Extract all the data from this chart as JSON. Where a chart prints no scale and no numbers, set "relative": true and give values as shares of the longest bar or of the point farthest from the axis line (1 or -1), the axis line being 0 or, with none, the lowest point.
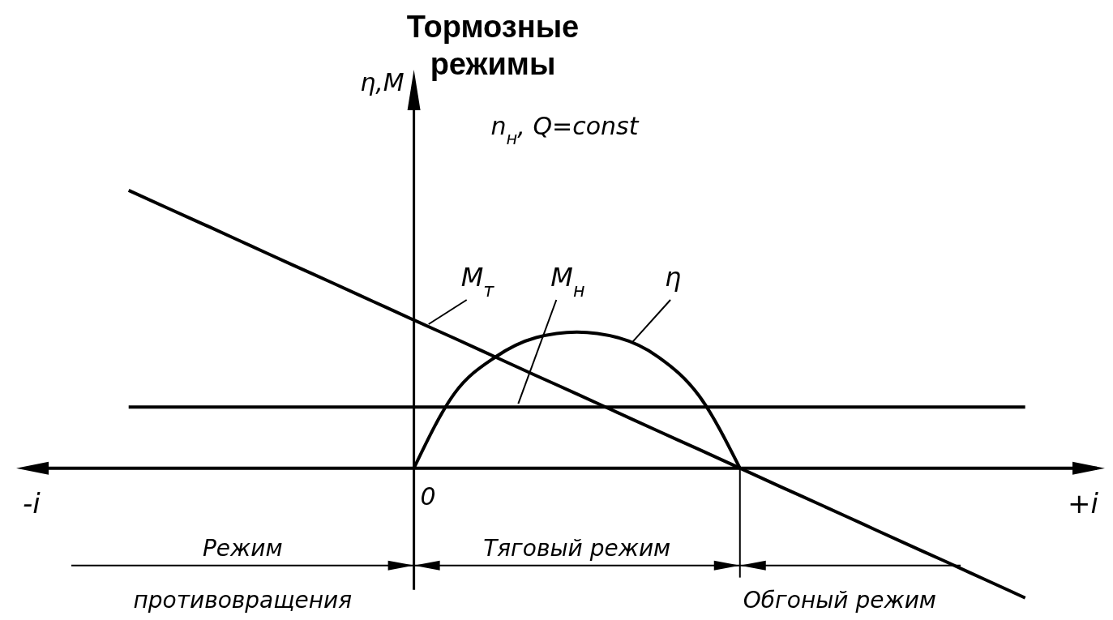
{
  "chart_data": {
    "type": "line",
    "title": "Тормозные режимы",
    "ylabel": "η,M",
    "relative": true,
    "categories": [
      null,
      null,
      null,
      null,
      null,
      null,
      null,
      null,
      null,
      null,
      null,
      null,
      null,
      null,
      null,
      null,
      null,
      null,
      null,
      null,
      null,
      null,
      null
    ],
    "series": [
      {
        "name": "M$_{т}$",
        "color": "#000000",
        "values": [
          1,
          0.933,
          0.867,
          0.8,
          0.733,
          0.667,
          0.6,
          0.533,
          0.467,
          0.4,
          0.333,
          0.267,
          0.2,
          0.133,
          0.067,
          0,
          -0.067,
          -0.133,
          -0.2,
          -0.267,
          -0.333,
          -0.4,
          -0.467
        ]
      },
      {
        "name": "M$_{н}$",
        "color": "#000000",
        "values": [
          0.22,
          0.22,
          0.22,
          0.22,
          0.22,
          0.22,
          0.22,
          0.22,
          0.22,
          0.22,
          0.22,
          0.22,
          0.22,
          0.22,
          0.22,
          0.22,
          0.22,
          0.22,
          0.22,
          0.22,
          0.22,
          0.22,
          0.22
        ]
      },
      {
        "name": "η",
        "color": "#000000",
        "values": [
          null,
          null,
          null,
          null,
          null,
          null,
          null,
          0,
          0.27,
          0.4,
          0.47,
          0.49,
          0.47,
          0.4,
          0.26,
          0,
          null,
          null,
          null,
          null,
          null,
          null,
          null
        ]
      }
    ],
    "annotations": [
      "0",
      "-i",
      "+i",
      "n$_{н}$, Q=const",
      "Режим противовращения",
      "Тяговый режим",
      "Обгоный режим"
    ]
  }
}
